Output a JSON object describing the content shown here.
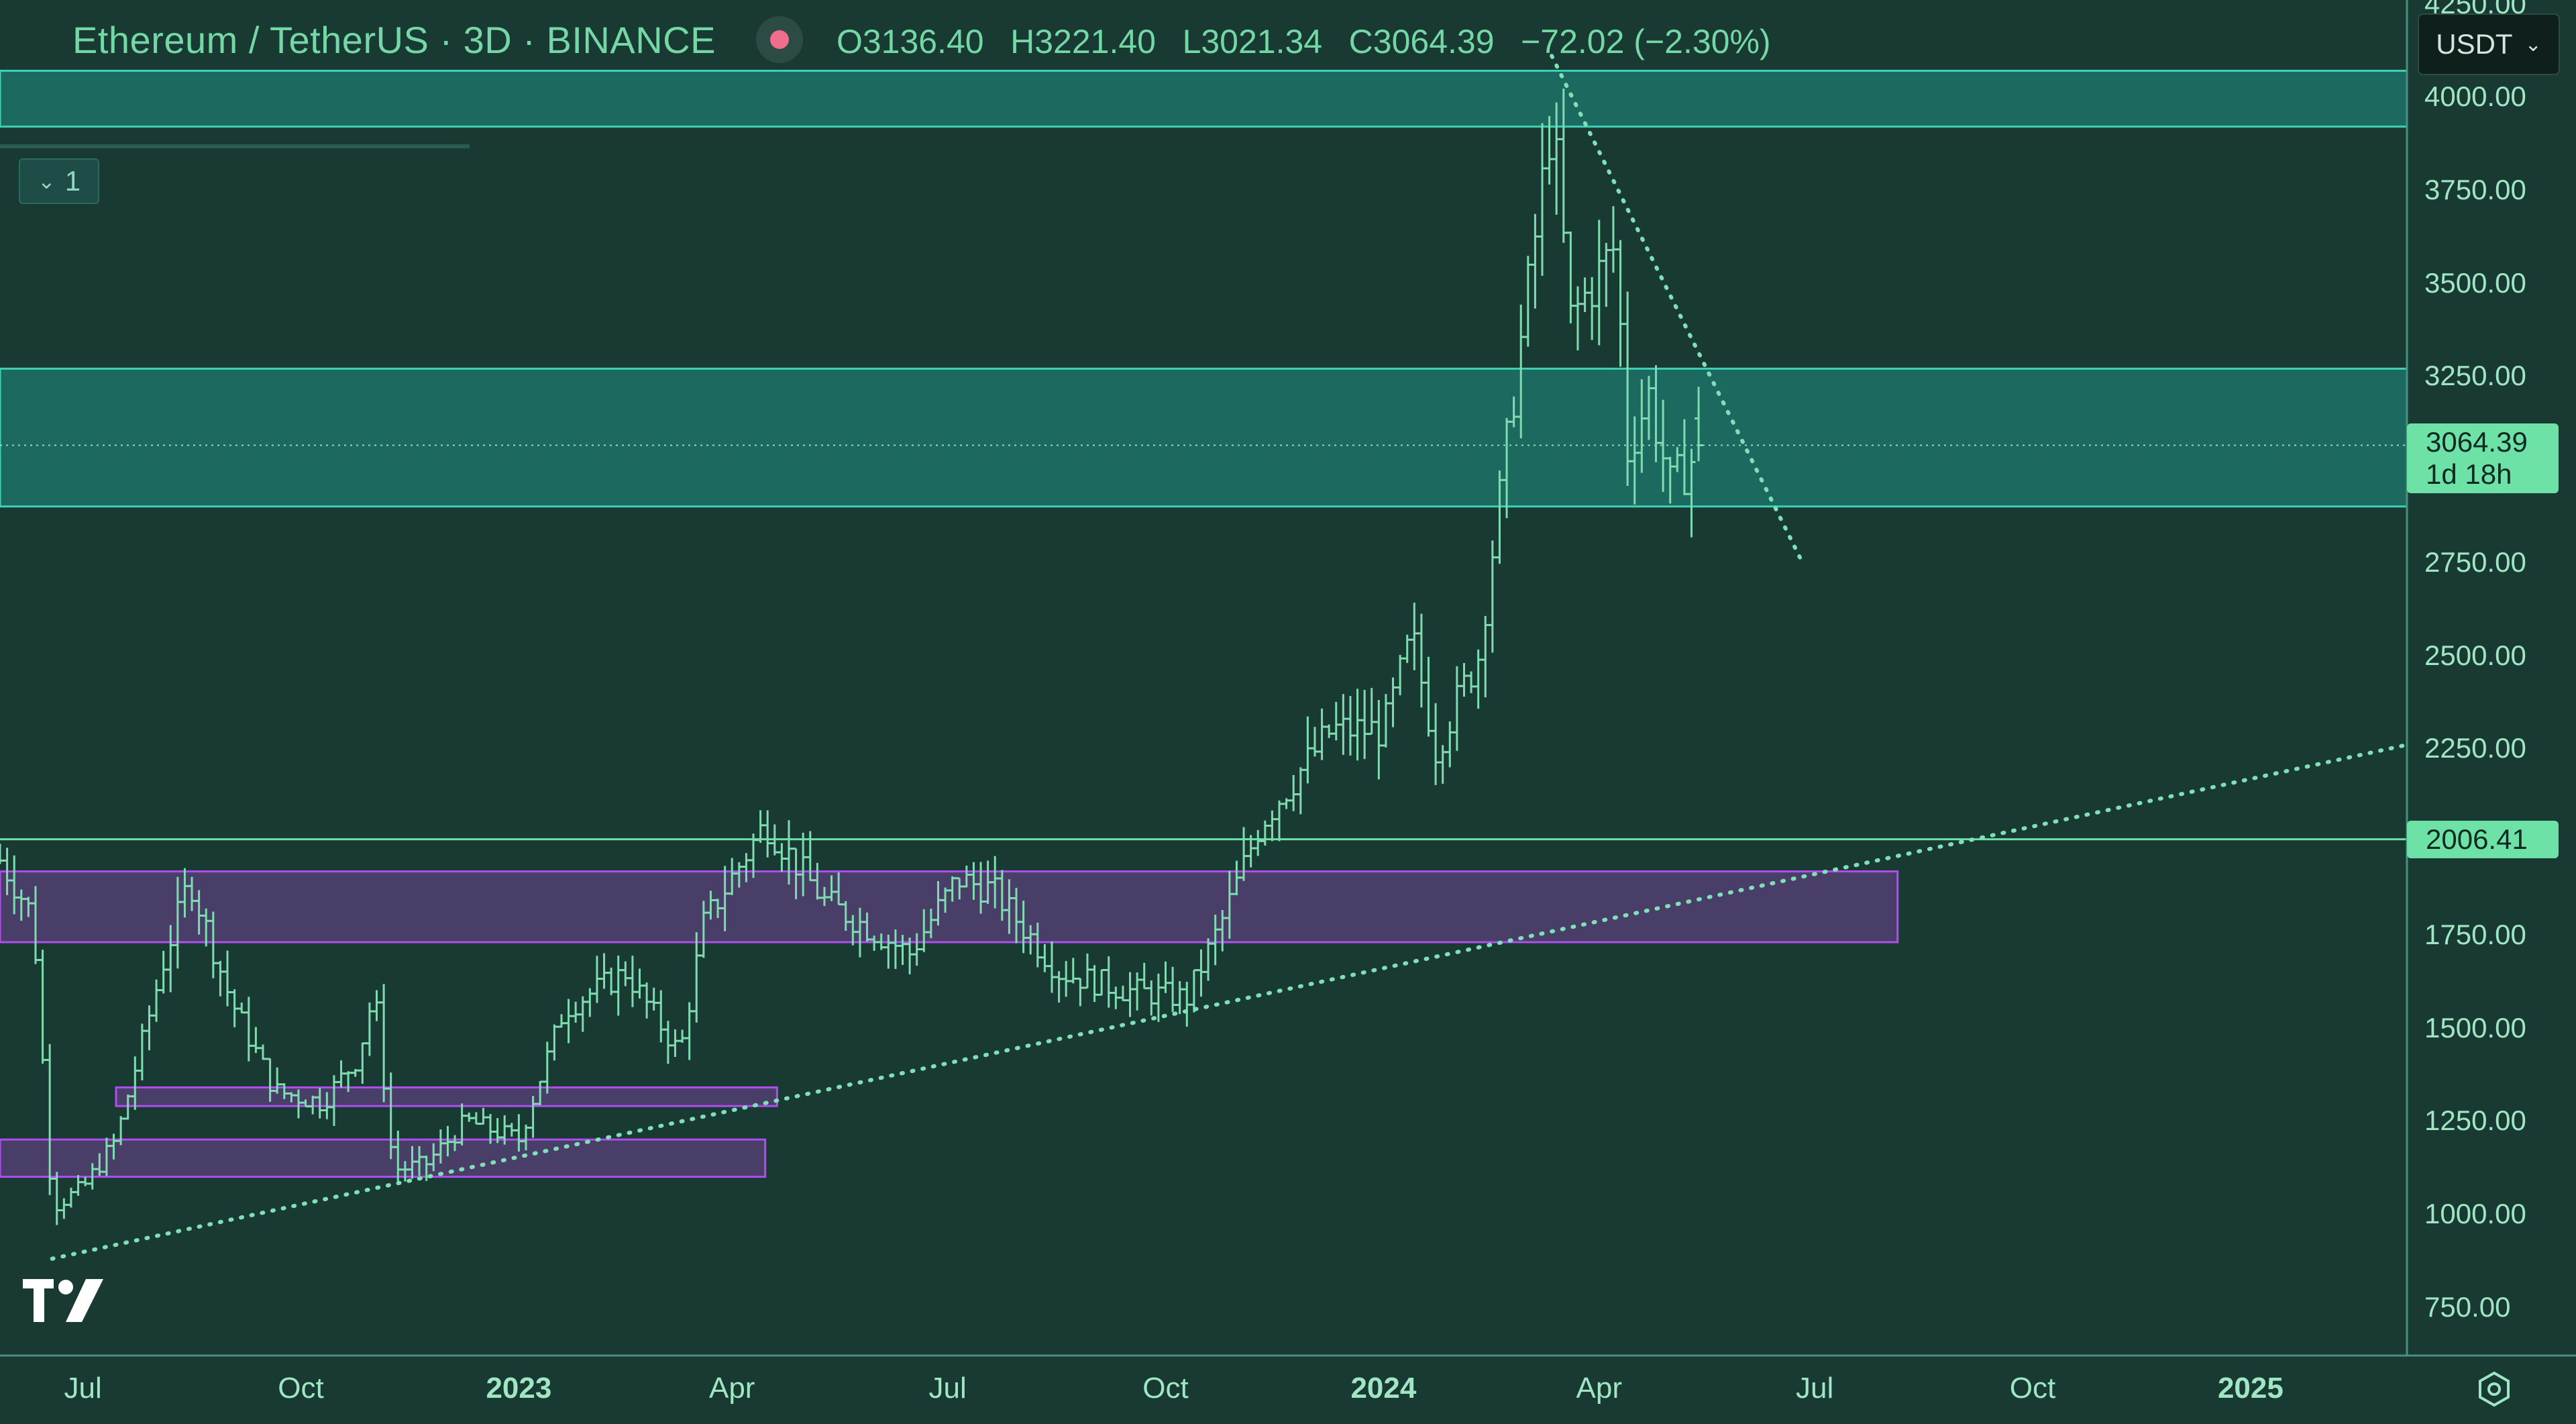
{
  "header": {
    "symbol": "Ethereum / TetherUS · 3D · BINANCE",
    "open": "O3136.40",
    "high": "H3221.40",
    "low": "L3021.34",
    "close": "C3064.39",
    "change": "−72.02 (−2.30%)"
  },
  "currency_button": {
    "label": "USDT",
    "icon": "chevron-down-icon"
  },
  "layers_button": {
    "label": "1",
    "icon": "chevron-down-icon"
  },
  "current_price": {
    "value": "3064.39",
    "countdown": "1d 18h"
  },
  "level_tag": "2006.41",
  "colors": {
    "background": "#193a33",
    "candle": "#7fdcb0",
    "zone_teal": "#1b6b62",
    "zone_purple": "#4f3f6e",
    "purple_border": "#b14df0",
    "trendline": "#7fe0b8",
    "tag": "#6ee2a6"
  },
  "chart_data": {
    "type": "bar",
    "subtype": "ohlc",
    "symbol": "ETH/USDT",
    "interval": "3D",
    "ylim": [
      620,
      4260
    ],
    "y_ticks": [
      "4250.00",
      "4000.00",
      "3750.00",
      "3500.00",
      "3250.00",
      "2750.00",
      "2500.00",
      "2250.00",
      "1750.00",
      "1500.00",
      "1250.00",
      "1000.00",
      "750.00"
    ],
    "x_ticks": [
      "Jul",
      "Oct",
      "2023",
      "Apr",
      "Jul",
      "Oct",
      "2024",
      "Apr",
      "Jul",
      "Oct",
      "2025"
    ],
    "x_ticks_bold": [
      "2023",
      "2024",
      "2025"
    ],
    "x_range": [
      "2022-05-27",
      "2025-03-08"
    ],
    "price_path": [
      [
        "2022-05-27",
        1950
      ],
      [
        "2022-06-10",
        1800
      ],
      [
        "2022-06-18",
        1020
      ],
      [
        "2022-07-01",
        1070
      ],
      [
        "2022-07-15",
        1200
      ],
      [
        "2022-08-05",
        1700
      ],
      [
        "2022-08-15",
        1900
      ],
      [
        "2022-09-01",
        1580
      ],
      [
        "2022-09-20",
        1330
      ],
      [
        "2022-10-10",
        1300
      ],
      [
        "2022-10-25",
        1420
      ],
      [
        "2022-11-01",
        1600
      ],
      [
        "2022-11-09",
        1120
      ],
      [
        "2022-11-22",
        1130
      ],
      [
        "2022-12-10",
        1250
      ],
      [
        "2023-01-01",
        1200
      ],
      [
        "2023-01-20",
        1550
      ],
      [
        "2023-02-15",
        1650
      ],
      [
        "2023-03-10",
        1430
      ],
      [
        "2023-03-20",
        1780
      ],
      [
        "2023-04-15",
        2050
      ],
      [
        "2023-05-10",
        1840
      ],
      [
        "2023-06-15",
        1700
      ],
      [
        "2023-07-05",
        1900
      ],
      [
        "2023-07-20",
        1870
      ],
      [
        "2023-08-17",
        1650
      ],
      [
        "2023-09-15",
        1600
      ],
      [
        "2023-10-10",
        1580
      ],
      [
        "2023-10-25",
        1790
      ],
      [
        "2023-11-10",
        2050
      ],
      [
        "2023-12-10",
        2300
      ],
      [
        "2024-01-01",
        2300
      ],
      [
        "2024-01-13",
        2550
      ],
      [
        "2024-01-23",
        2250
      ],
      [
        "2024-02-10",
        2500
      ],
      [
        "2024-02-26",
        3250
      ],
      [
        "2024-03-12",
        3950
      ],
      [
        "2024-03-20",
        3400
      ],
      [
        "2024-04-08",
        3600
      ],
      [
        "2024-04-13",
        3050
      ],
      [
        "2024-04-22",
        3200
      ],
      [
        "2024-05-01",
        2950
      ],
      [
        "2024-05-15",
        3064
      ]
    ],
    "last_ohlc": {
      "open": 3136.4,
      "high": 3221.4,
      "low": 3021.34,
      "close": 3064.39
    },
    "current_price": 3064.39,
    "horizontal_level": 2006.41,
    "zones": [
      {
        "color": "teal",
        "from_date": "2022-05-27",
        "to_date": "2025-03-08",
        "low": 3920,
        "high": 4070
      },
      {
        "color": "teal",
        "from_date": "2022-05-27",
        "to_date": "2025-03-08",
        "low": 2900,
        "high": 3270
      },
      {
        "color": "purple",
        "from_date": "2022-05-27",
        "to_date": "2024-08-05",
        "low": 1730,
        "high": 1920
      },
      {
        "color": "purple",
        "from_date": "2022-07-15",
        "to_date": "2023-04-20",
        "low": 1290,
        "high": 1340
      },
      {
        "color": "purple",
        "from_date": "2022-05-27",
        "to_date": "2023-04-15",
        "low": 1100,
        "high": 1200
      }
    ],
    "trendlines": [
      {
        "style": "dotted",
        "from": [
          "2022-06-18",
          880
        ],
        "to": [
          "2025-03-08",
          2260
        ]
      },
      {
        "style": "dotted",
        "from": [
          "2024-03-12",
          4110
        ],
        "to": [
          "2024-06-25",
          2760
        ]
      }
    ]
  }
}
